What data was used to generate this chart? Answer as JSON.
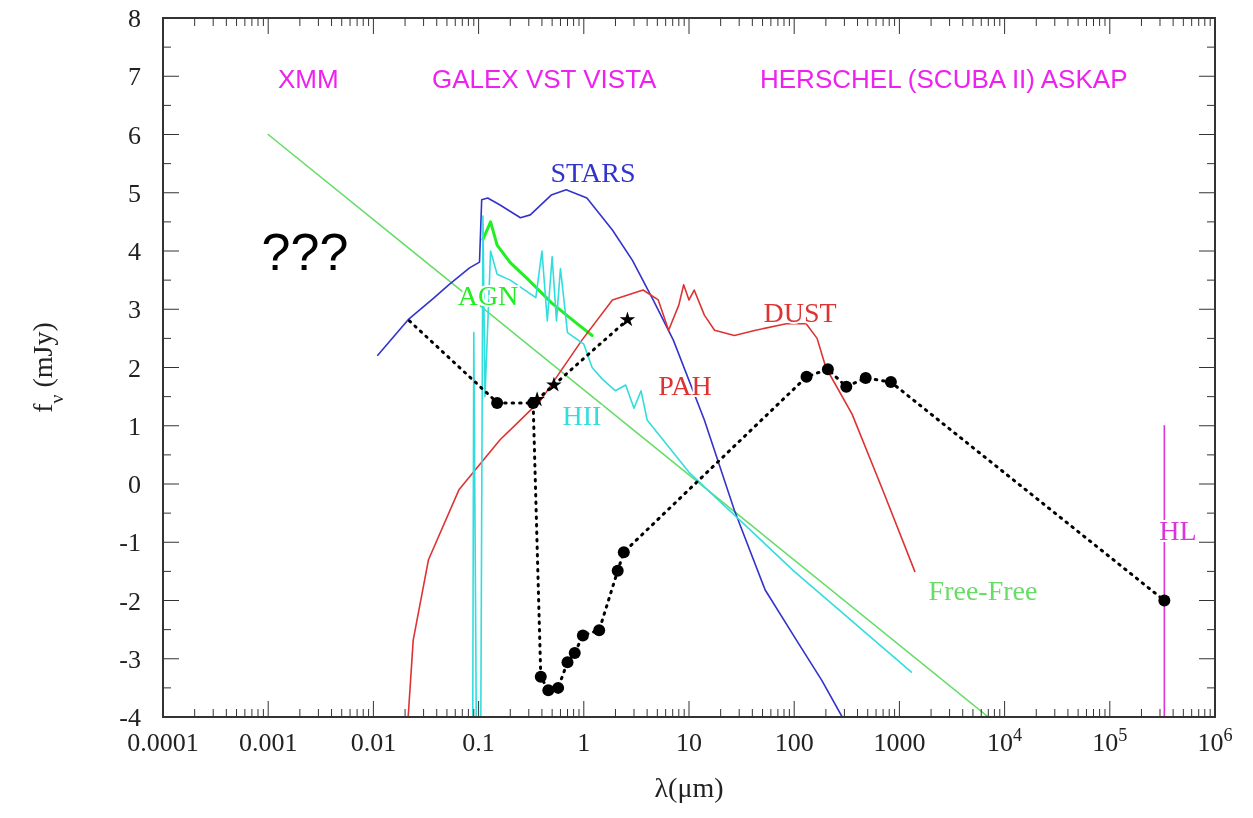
{
  "chart_data": {
    "type": "line",
    "xlabel": "λ(μm)",
    "ylabel": "f$_{ν}$ (mJy)",
    "log": "x",
    "xlim": [
      0.0001,
      1000000
    ],
    "ylim": [
      -4,
      8
    ],
    "xticks": [
      0.0001,
      0.001,
      0.01,
      0.1,
      1,
      10,
      100,
      1000,
      {
        "value": 10000,
        "label": "10$^{4}$"
      },
      {
        "value": 100000,
        "label": "10$^{5}$"
      },
      {
        "value": 1000000,
        "label": "10$^{6}$"
      }
    ],
    "yticks": [
      -4,
      -3,
      -2,
      -1,
      0,
      1,
      2,
      3,
      4,
      5,
      6,
      7,
      8
    ],
    "annotations": [
      "XMM",
      "GALEX VST VISTA",
      "HERSCHEL (SCUBA II) ASKAP",
      "???",
      "PAH"
    ],
    "series": [
      {
        "name": "Free-Free",
        "color": "#66dd66",
        "x": [
          0.001,
          7000
        ],
        "values": [
          6,
          -4
        ],
        "marker": "none",
        "line_style": "solid"
      },
      {
        "name": "AGN",
        "color": "#22ee22",
        "x": [
          0.11,
          0.13,
          0.15,
          0.2,
          0.3,
          0.5,
          0.8,
          1.2
        ],
        "values": [
          4.2,
          4.5,
          4.1,
          3.8,
          3.5,
          3.1,
          2.8,
          2.55
        ],
        "marker": "none",
        "line_style": "solid"
      },
      {
        "name": "STARS",
        "color": "#3333cc",
        "x": [
          0.011,
          0.0214,
          0.0374,
          0.052,
          0.082,
          0.102,
          0.107,
          0.122,
          0.16,
          0.25,
          0.31,
          0.49,
          0.68,
          1.07,
          1.87,
          2.9,
          4.6,
          7.1,
          14,
          27,
          53,
          105,
          183,
          286
        ],
        "values": [
          2.21,
          2.82,
          3.19,
          3.42,
          3.71,
          3.81,
          4.88,
          4.91,
          4.79,
          4.57,
          4.62,
          4.96,
          5.05,
          4.91,
          4.36,
          3.84,
          3.15,
          2.47,
          1.1,
          -0.45,
          -1.82,
          -2.68,
          -3.37,
          -4
        ],
        "marker": "none",
        "line_style": "solid"
      },
      {
        "name": "DUST",
        "color": "#dd3333",
        "x": [
          0.0214,
          0.0239,
          0.0334,
          0.065,
          0.16,
          0.39,
          0.96,
          1.87,
          3.66,
          5.1,
          6.4,
          8,
          8.9,
          10,
          11.2,
          14,
          17.5,
          27,
          43,
          84,
          130,
          165,
          200,
          355,
          700,
          1400
        ],
        "values": [
          -4,
          -2.68,
          -1.3,
          -0.1,
          0.76,
          1.44,
          2.47,
          3.16,
          3.33,
          3.16,
          2.64,
          3.07,
          3.42,
          3.16,
          3.33,
          2.9,
          2.64,
          2.55,
          2.64,
          2.75,
          2.75,
          2.5,
          2.0,
          1.2,
          -0.12,
          -1.5
        ],
        "marker": "none",
        "line_style": "solid"
      },
      {
        "name": "HII",
        "color": "#33dddd",
        "x": [
          0.088,
          0.09,
          0.095,
          0.105,
          0.11,
          0.115,
          0.13,
          0.15,
          0.2,
          0.35,
          0.4,
          0.45,
          0.5,
          0.55,
          0.6,
          0.7,
          1,
          1.2,
          1.5,
          2,
          2.5,
          3,
          3.5,
          4,
          10,
          100,
          1300
        ],
        "values": [
          -4,
          2.6,
          -4,
          -4,
          4.6,
          1.5,
          4,
          3.6,
          3.5,
          3.2,
          4,
          2.8,
          3.9,
          2.8,
          3.7,
          2.6,
          2.4,
          2,
          1.8,
          1.6,
          1.7,
          1.3,
          1.6,
          1.1,
          0.2,
          -1.5,
          -3.23
        ],
        "marker": "none",
        "line_style": "solid"
      },
      {
        "name": "HL",
        "color": "#dd33dd",
        "x": [
          330000,
          330000
        ],
        "values": [
          1,
          -4
        ],
        "marker": "none",
        "line_style": "solid"
      },
      {
        "color": "#000000",
        "x": [
          0.022,
          0.14
        ],
        "values": [
          2.8,
          1.45
        ],
        "marker": "none",
        "line_style": "dotted"
      },
      {
        "color": "#000000",
        "x": [
          0.15,
          0.33,
          0.39,
          0.46,
          0.57,
          0.7,
          0.82,
          0.98,
          1.4,
          2.1,
          2.4,
          131,
          209,
          313,
          478,
          830,
          330000
        ],
        "values": [
          1.39,
          1.39,
          -3.31,
          -3.54,
          -3.5,
          -3.06,
          -2.9,
          -2.6,
          -2.51,
          -1.49,
          -1.17,
          1.84,
          1.97,
          1.67,
          1.82,
          1.75,
          -2
        ],
        "marker": "circle",
        "line_style": "dotted"
      },
      {
        "color": "#000000",
        "x": [
          0.36,
          0.52,
          2.6
        ],
        "values": [
          1.45,
          1.7,
          2.82
        ],
        "marker": "star",
        "line_style": "dotted"
      }
    ]
  }
}
